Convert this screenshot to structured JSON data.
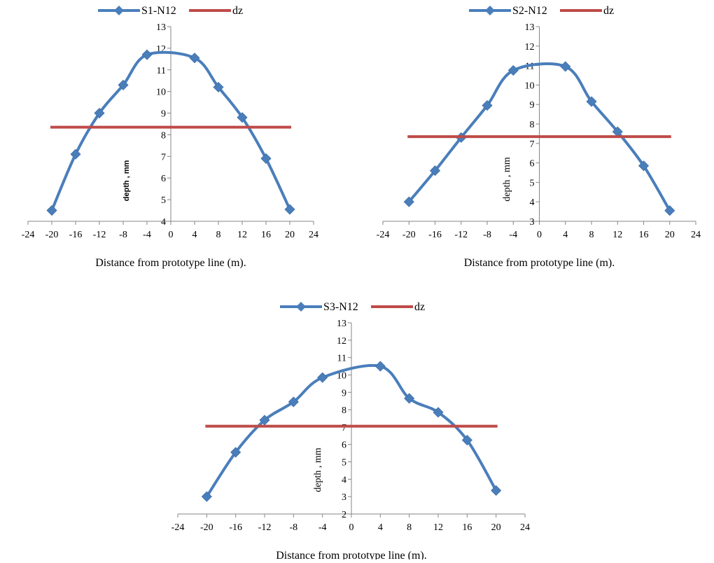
{
  "charts": [
    {
      "chart_data": {
        "type": "line",
        "xlabel": "Distance from prototype line (m).",
        "ylabel": "depth , mm",
        "xlim": [
          -24,
          24
        ],
        "ylim": [
          4,
          13
        ],
        "xticks": [
          -24,
          -20,
          -16,
          -12,
          -8,
          -4,
          0,
          4,
          8,
          12,
          16,
          20,
          24
        ],
        "yticks": [
          4,
          5,
          6,
          7,
          8,
          9,
          10,
          11,
          12,
          13
        ],
        "grid": false,
        "legend": "top",
        "series": [
          {
            "name": "S1-N12",
            "color": "#4a7ebb",
            "marker": "diamond",
            "x": [
              -20,
              -16,
              -12,
              -8,
              -4,
              4,
              8,
              12,
              16,
              20
            ],
            "y": [
              4.5,
              7.1,
              9.0,
              10.3,
              11.7,
              11.55,
              10.2,
              8.8,
              6.9,
              4.55
            ]
          },
          {
            "name": "dz",
            "color": "#be4b48",
            "marker": "none",
            "x": [
              -20,
              20
            ],
            "y": [
              8.35,
              8.35
            ]
          }
        ]
      }
    },
    {
      "chart_data": {
        "type": "line",
        "xlabel": "Distance from prototype line (m).",
        "ylabel": "depth , mm",
        "xlim": [
          -24,
          24
        ],
        "ylim": [
          3,
          13
        ],
        "xticks": [
          -24,
          -20,
          -16,
          -12,
          -8,
          -4,
          0,
          4,
          8,
          12,
          16,
          20,
          24
        ],
        "yticks": [
          3,
          4,
          5,
          6,
          7,
          8,
          9,
          10,
          11,
          12,
          13
        ],
        "grid": false,
        "legend": "top",
        "series": [
          {
            "name": "S2-N12",
            "color": "#4a7ebb",
            "marker": "diamond",
            "x": [
              -20,
              -16,
              -12,
              -8,
              -4,
              4,
              8,
              12,
              16,
              20
            ],
            "y": [
              4.0,
              5.6,
              7.3,
              8.95,
              10.75,
              10.95,
              9.15,
              7.6,
              5.85,
              3.55
            ]
          },
          {
            "name": "dz",
            "color": "#be4b48",
            "marker": "none",
            "x": [
              -20,
              20
            ],
            "y": [
              7.35,
              7.35
            ]
          }
        ]
      }
    },
    {
      "chart_data": {
        "type": "line",
        "xlabel": "Distance from prototype line (m).",
        "ylabel": "depth , mm",
        "xlim": [
          -24,
          24
        ],
        "ylim": [
          2,
          13
        ],
        "xticks": [
          -24,
          -20,
          -16,
          -12,
          -8,
          -4,
          0,
          4,
          8,
          12,
          16,
          20,
          24
        ],
        "yticks": [
          2,
          3,
          4,
          5,
          6,
          7,
          8,
          9,
          10,
          11,
          12,
          13
        ],
        "grid": false,
        "legend": "top",
        "series": [
          {
            "name": "S3-N12",
            "color": "#4a7ebb",
            "marker": "diamond",
            "x": [
              -20,
              -16,
              -12,
              -8,
              -4,
              4,
              8,
              12,
              16,
              20
            ],
            "y": [
              3.0,
              5.55,
              7.4,
              8.45,
              9.85,
              10.5,
              8.65,
              7.85,
              6.25,
              3.35
            ]
          },
          {
            "name": "dz",
            "color": "#be4b48",
            "marker": "none",
            "x": [
              -20,
              20
            ],
            "y": [
              7.05,
              7.05
            ]
          }
        ]
      }
    }
  ]
}
